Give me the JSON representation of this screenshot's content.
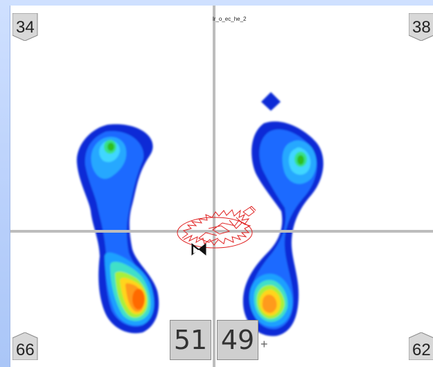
{
  "title": "lr_o_ec_he_2",
  "corners": {
    "top_left": "34",
    "top_right": "38",
    "bottom_left": "66",
    "bottom_right": "62"
  },
  "distribution": {
    "left": "51",
    "right": "49"
  },
  "plus_marker": "+",
  "colors": {
    "background_gradient": "#b9d0fb",
    "crosshair": "#bdbdbd",
    "sway_trace": "#e02020",
    "pressure_low": "#1e3cff",
    "pressure_mid": "#3fd7ff",
    "pressure_high": "#ff6a00"
  }
}
